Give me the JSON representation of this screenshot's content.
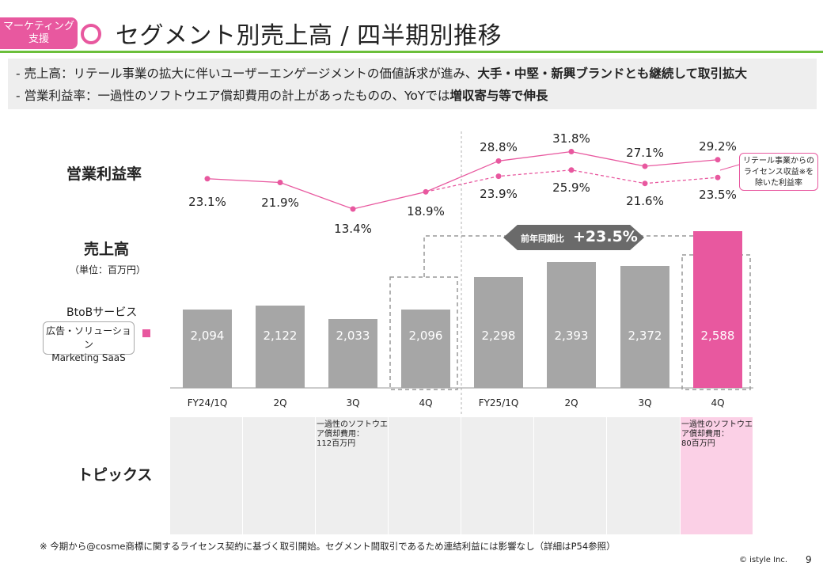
{
  "header": {
    "tag_line1": "マーケティング",
    "tag_line2": "支援",
    "title": "セグメント別売上高 / 四半期別推移"
  },
  "summary": {
    "line1_prefix": "-  売上高：リテール事業の拡大に伴いユーザーエンゲージメントの価値訴求が進み、",
    "line1_bold": "大手・中堅・新興ブランドとも継続して取引拡大",
    "line2_prefix": "-  営業利益率：一過性のソフトウエア償却費用の計上があったものの、YoYでは",
    "line2_bold": "増収寄与等で伸長"
  },
  "labels": {
    "margin_heading": "営業利益率",
    "sales_heading": "売上高",
    "unit": "（単位：百万円）",
    "segment": "BtoBサービス",
    "legend_line1": "広告・ソリューション",
    "legend_line2": "Marketing SaaS",
    "topics_heading": "トピックス"
  },
  "badge": {
    "label": "前年同期比",
    "value": "+23.5%"
  },
  "callout": {
    "line1": "リテール事業からの",
    "line2": "ライセンス収益※を",
    "line3": "除いた利益率"
  },
  "topics": {
    "fy24_3q": {
      "line1": "一過性のソフトウエ",
      "line2": "ア償却費用：",
      "line3": "112百万円"
    },
    "fy25_4q": {
      "line1": "一過性のソフトウエ",
      "line2": "ア償却費用：",
      "line3": "80百万円"
    }
  },
  "footnote": "※ 今期から@cosme商標に関するライセンス契約に基づく取引開始。セグメント間取引であるため連結利益には影響なし（詳細はP54参照）",
  "footer": {
    "copyright": "© istyle Inc.",
    "page": "9"
  },
  "colors": {
    "accent": "#e8589f",
    "bar_gray": "#a6a6a6",
    "green_rule": "#6bbf3b"
  },
  "chart_data": {
    "type": "bar",
    "title": "セグメント別売上高 / 四半期別推移",
    "unit": "百万円",
    "categories": [
      "FY24/1Q",
      "2Q",
      "3Q",
      "4Q",
      "FY25/1Q",
      "2Q",
      "3Q",
      "4Q"
    ],
    "series": [
      {
        "name": "売上高",
        "values": [
          2094,
          2122,
          2033,
          2096,
          2298,
          2393,
          2372,
          2588
        ],
        "labels": [
          "2,094",
          "2,122",
          "2,033",
          "2,096",
          "2,298",
          "2,393",
          "2,372",
          "2,588"
        ]
      },
      {
        "name": "営業利益率",
        "type": "line",
        "values": [
          23.1,
          21.9,
          13.4,
          18.9,
          28.8,
          31.8,
          27.1,
          29.2
        ],
        "labels": [
          "23.1%",
          "21.9%",
          "13.4%",
          "18.9%",
          "28.8%",
          "31.8%",
          "27.1%",
          "29.2%"
        ]
      },
      {
        "name": "リテール事業からのライセンス収益を除いた利益率",
        "type": "line",
        "style": "dashed",
        "values": [
          null,
          null,
          null,
          18.9,
          23.9,
          25.9,
          21.6,
          23.5
        ],
        "labels": [
          "",
          "",
          "",
          "",
          "23.9%",
          "25.9%",
          "21.6%",
          "23.5%"
        ]
      }
    ],
    "highlight": {
      "category_index": 7,
      "yoy_growth": "+23.5%"
    }
  }
}
